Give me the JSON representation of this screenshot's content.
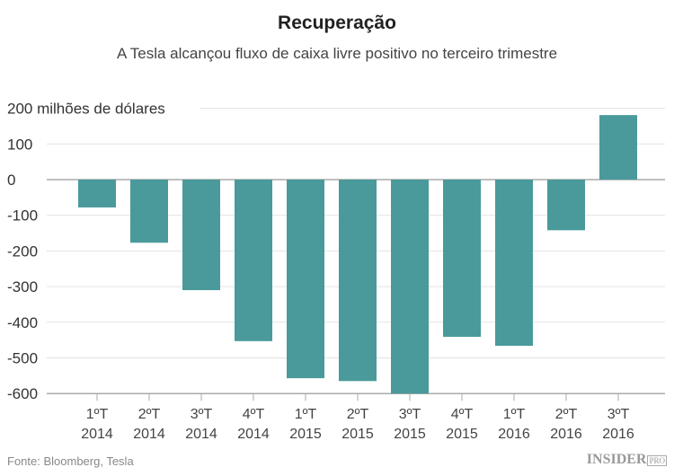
{
  "title": "Recuperação",
  "subtitle": "A Tesla alcançou fluxo de caixa livre positivo no terceiro trimestre",
  "source": "Fonte: Bloomberg, Tesla",
  "logo": {
    "main": "INSIDER",
    "badge": "PRO"
  },
  "colors": {
    "bar": "#4a9a9b"
  },
  "chart_data": {
    "type": "bar",
    "title": "Recuperação",
    "subtitle": "A Tesla alcançou fluxo de caixa livre positivo no terceiro trimestre",
    "ylabel": "milhões de dólares",
    "ylim": [
      -600,
      200
    ],
    "yticks": [
      200,
      100,
      0,
      -100,
      -200,
      -300,
      -400,
      -500,
      -600
    ],
    "ytick_labels": [
      "200 milhões de dólares",
      "100",
      "0",
      "-100",
      "-200",
      "-300",
      "-400",
      "-500",
      "-600"
    ],
    "grid": true,
    "categories": [
      [
        "1ºT",
        "2014"
      ],
      [
        "2ºT",
        "2014"
      ],
      [
        "3ºT",
        "2014"
      ],
      [
        "4ºT",
        "2014"
      ],
      [
        "1ºT",
        "2015"
      ],
      [
        "2ºT",
        "2015"
      ],
      [
        "3ºT",
        "2015"
      ],
      [
        "4ºT",
        "2015"
      ],
      [
        "1ºT",
        "2016"
      ],
      [
        "2ºT",
        "2016"
      ],
      [
        "3ºT",
        "2016"
      ]
    ],
    "values": [
      -78,
      -177,
      -310,
      -453,
      -557,
      -565,
      -605,
      -441,
      -466,
      -142,
      181
    ]
  }
}
